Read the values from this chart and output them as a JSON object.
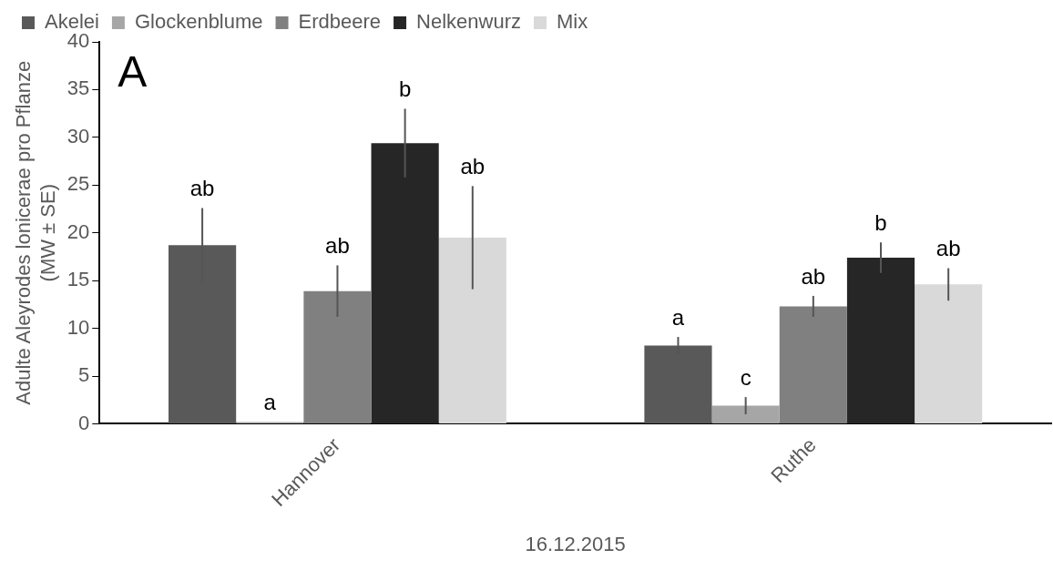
{
  "chart_data": {
    "type": "bar",
    "xlabel": "16.12.2015",
    "ylabel": "Adulte Aleyrodes lonicerae pro Pflanze\n(MW ± SE)",
    "annotations": [
      "A"
    ],
    "categories": [
      "Hannover",
      "Ruthe"
    ],
    "series": [
      {
        "name": "Akelei",
        "color": "#595959",
        "values": [
          18.7,
          8.2
        ],
        "errors": [
          3.9,
          0.9
        ],
        "value_labels": [
          "ab",
          "a"
        ]
      },
      {
        "name": "Glockenblume",
        "color": "#a6a6a6",
        "values": [
          0.2,
          1.9
        ],
        "errors": [
          null,
          0.9
        ],
        "value_labels": [
          "a",
          "c"
        ]
      },
      {
        "name": "Erdbeere",
        "color": "#808080",
        "values": [
          13.9,
          12.3
        ],
        "errors": [
          2.7,
          1.1
        ],
        "value_labels": [
          "ab",
          "ab"
        ]
      },
      {
        "name": "Nelkenwurz",
        "color": "#262626",
        "values": [
          29.4,
          17.4
        ],
        "errors": [
          3.6,
          1.6
        ],
        "value_labels": [
          "b",
          "b"
        ]
      },
      {
        "name": "Mix",
        "color": "#d9d9d9",
        "values": [
          19.5,
          14.6
        ],
        "errors": [
          5.4,
          1.7
        ],
        "value_labels": [
          "ab",
          "ab"
        ]
      }
    ],
    "ylim": [
      0,
      40
    ],
    "yticks": [
      0,
      5,
      10,
      15,
      20,
      25,
      30,
      35,
      40
    ],
    "grid": false,
    "legend": "top"
  }
}
